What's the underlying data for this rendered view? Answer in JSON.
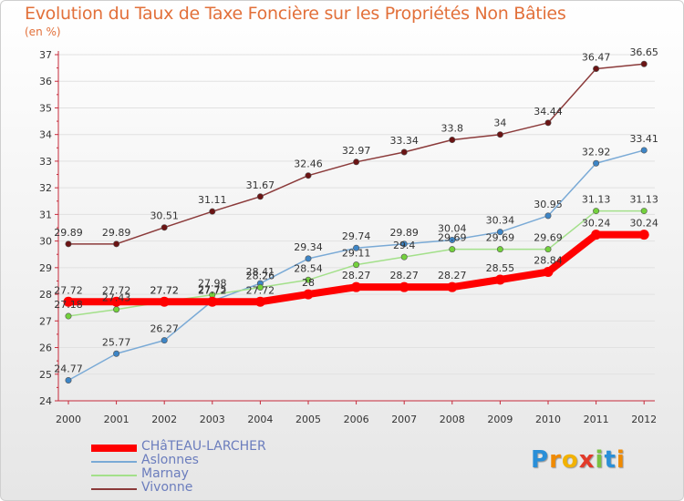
{
  "title": "Evolution du Taux de Taxe Foncière sur les Propriétés Non Bâties",
  "subtitle": "(en %)",
  "colors": {
    "title": "#e2703a",
    "legend_text": "#6b7dbd",
    "axis": "#c62a3a"
  },
  "chart_data": {
    "type": "line",
    "title": "Evolution du Taux de Taxe Foncière sur les Propriétés Non Bâties",
    "ylabel": "(en %)",
    "xlabel": "",
    "x": [
      "2000",
      "2001",
      "2002",
      "2003",
      "2004",
      "2005",
      "2006",
      "2007",
      "2008",
      "2009",
      "2010",
      "2011",
      "2012"
    ],
    "ylim": [
      24,
      37
    ],
    "yticks": [
      "24",
      "25",
      "26",
      "27",
      "28",
      "29",
      "30",
      "31",
      "32",
      "33",
      "34",
      "35",
      "36",
      "37"
    ],
    "grid": true,
    "legend_position": "bottom-left",
    "series": [
      {
        "name": "CHâTEAU-LARCHER",
        "color": "#ff0000",
        "width": 8,
        "values": [
          27.72,
          27.72,
          27.72,
          27.72,
          27.72,
          28.0,
          28.27,
          28.27,
          28.27,
          28.55,
          28.84,
          30.24,
          30.24
        ],
        "labels": [
          "27.72",
          "27.72",
          "27.72",
          "27.72",
          "27.72",
          "28",
          "28.27",
          "28.27",
          "28.27",
          "28.55",
          "28.84",
          "30.24",
          "30.24"
        ]
      },
      {
        "name": "Aslonnes",
        "color": "#7aaad6",
        "marker": "#3d85c6",
        "width": 1.5,
        "values": [
          24.77,
          25.77,
          26.27,
          27.75,
          28.41,
          29.34,
          29.74,
          29.89,
          30.04,
          30.34,
          30.95,
          32.92,
          33.41
        ],
        "labels": [
          "24.77",
          "25.77",
          "26.27",
          "27.75",
          "28.41",
          "29.34",
          "29.74",
          "29.89",
          "30.04",
          "30.34",
          "30.95",
          "32.92",
          "33.41"
        ]
      },
      {
        "name": "Marnay",
        "color": "#a3e08a",
        "marker": "#73d13c",
        "width": 1.5,
        "values": [
          27.18,
          27.43,
          27.72,
          27.98,
          28.26,
          28.54,
          29.11,
          29.4,
          29.69,
          29.69,
          29.69,
          31.13,
          31.13
        ],
        "labels": [
          "27.18",
          "27.43",
          "27.72",
          "27.98",
          "28.26",
          "28.54",
          "29.11",
          "29.4",
          "29.69",
          "29.69",
          "29.69",
          "31.13",
          "31.13"
        ]
      },
      {
        "name": "Vivonne",
        "color": "#8b3a3a",
        "marker": "#6b1414",
        "width": 1.5,
        "values": [
          29.89,
          29.89,
          30.51,
          31.11,
          31.67,
          32.46,
          32.97,
          33.34,
          33.8,
          34.0,
          34.44,
          36.47,
          36.65
        ],
        "labels": [
          "29.89",
          "29.89",
          "30.51",
          "31.11",
          "31.67",
          "32.46",
          "32.97",
          "33.34",
          "33.8",
          "34",
          "34.44",
          "36.47",
          "36.65"
        ]
      }
    ]
  },
  "legend": [
    {
      "label": "CHâTEAU-LARCHER",
      "color": "#ff0000"
    },
    {
      "label": "Aslonnes",
      "color": "#7aaad6"
    },
    {
      "label": "Marnay",
      "color": "#a3e08a"
    },
    {
      "label": "Vivonne",
      "color": "#8b3a3a"
    }
  ],
  "logo": {
    "letters": [
      "P",
      "r",
      "o",
      "x",
      "i",
      "t",
      "i"
    ],
    "letter_colors": [
      "#2a8fd8",
      "#f08a00",
      "#f2b200",
      "#e23a2a",
      "#7ac142",
      "#2a8fd8",
      "#f08a00"
    ]
  }
}
